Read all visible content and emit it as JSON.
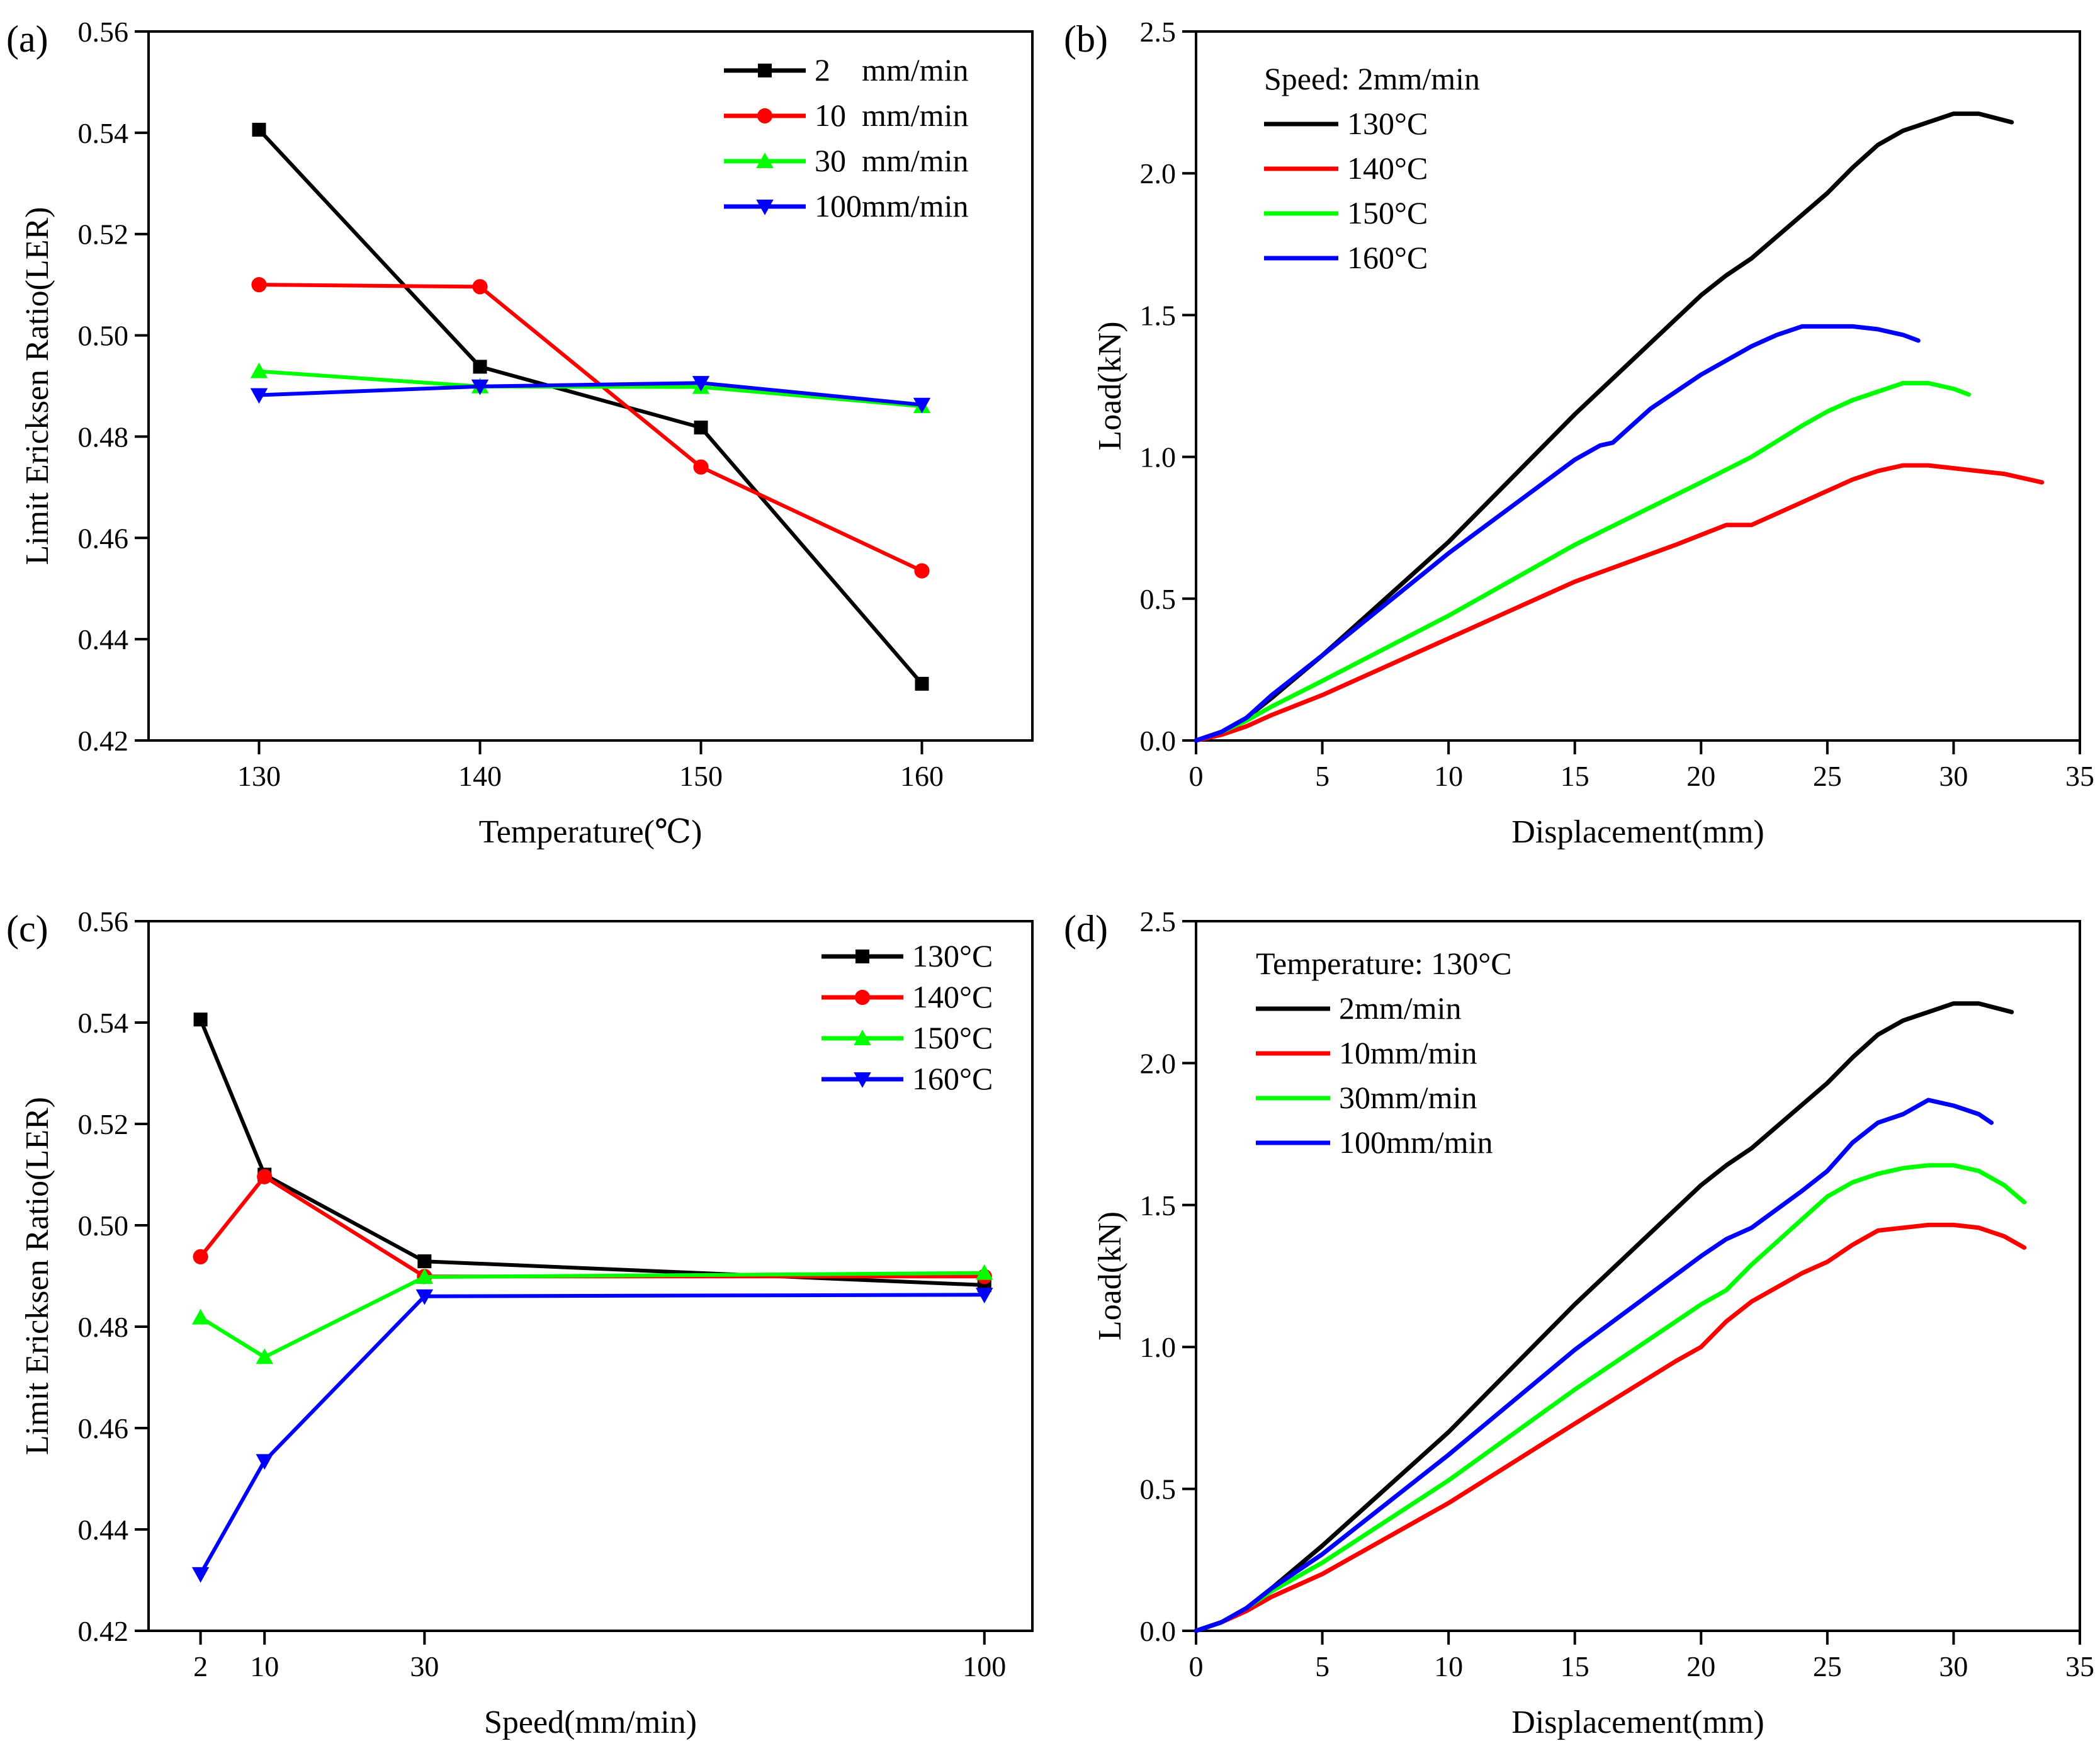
{
  "chart_data": [
    {
      "panel": "(a)",
      "type": "line",
      "xlabel": "Temperature(℃)",
      "ylabel": "Limit Ericksen Ratio(LER)",
      "xlim": [
        125,
        165
      ],
      "ylim": [
        0.42,
        0.56
      ],
      "xticks": [
        130,
        140,
        150,
        160
      ],
      "xtick_labels": [
        "130",
        "140",
        "150",
        "160"
      ],
      "yticks": [
        0.42,
        0.44,
        0.46,
        0.48,
        0.5,
        0.52,
        0.54,
        0.56
      ],
      "ytick_labels": [
        "0.42",
        "0.44",
        "0.46",
        "0.48",
        "0.50",
        "0.52",
        "0.54",
        "0.56"
      ],
      "legend_position": "top-right",
      "legend_title": "",
      "series": [
        {
          "name": "2    mm/min",
          "color": "#000000",
          "marker": "square",
          "x": [
            130,
            140,
            150,
            160
          ],
          "y": [
            0.5406,
            0.4938,
            0.4818,
            0.4312
          ]
        },
        {
          "name": "10  mm/min",
          "color": "#ff0000",
          "marker": "circle",
          "x": [
            130,
            140,
            150,
            160
          ],
          "y": [
            0.51,
            0.5096,
            0.474,
            0.4535
          ]
        },
        {
          "name": "30  mm/min",
          "color": "#00ff00",
          "marker": "triangle-up",
          "x": [
            130,
            140,
            150,
            160
          ],
          "y": [
            0.4929,
            0.4899,
            0.4898,
            0.486
          ]
        },
        {
          "name": "100mm/min",
          "color": "#0000ff",
          "marker": "triangle-down",
          "x": [
            130,
            140,
            150,
            160
          ],
          "y": [
            0.4882,
            0.4899,
            0.4906,
            0.4863
          ]
        }
      ]
    },
    {
      "panel": "(b)",
      "type": "line",
      "xlabel": "Displacement(mm)",
      "ylabel": "Load(kN)",
      "xlim": [
        0,
        35
      ],
      "ylim": [
        0,
        2.5
      ],
      "xticks": [
        0,
        5,
        10,
        15,
        20,
        25,
        30,
        35
      ],
      "xtick_labels": [
        "0",
        "5",
        "10",
        "15",
        "20",
        "25",
        "30",
        "35"
      ],
      "yticks": [
        0,
        0.5,
        1.0,
        1.5,
        2.0,
        2.5
      ],
      "ytick_labels": [
        "0.0",
        "0.5",
        "1.0",
        "1.5",
        "2.0",
        "2.5"
      ],
      "legend_position": "top-left",
      "legend_title": "Speed: 2mm/min",
      "series": [
        {
          "name": "130°C",
          "color": "#000000",
          "marker": "none",
          "x": [
            0,
            1,
            2,
            3,
            5,
            10,
            15,
            20,
            21,
            22,
            25,
            26,
            27,
            28,
            29,
            30,
            31,
            32.3
          ],
          "y": [
            0,
            0.03,
            0.08,
            0.15,
            0.3,
            0.7,
            1.15,
            1.57,
            1.64,
            1.7,
            1.93,
            2.02,
            2.1,
            2.15,
            2.18,
            2.21,
            2.21,
            2.18
          ]
        },
        {
          "name": "140°C",
          "color": "#ff0000",
          "marker": "none",
          "x": [
            0,
            1,
            2,
            3,
            5,
            10,
            15,
            19,
            21,
            22,
            24,
            25,
            26,
            27,
            28,
            29,
            30,
            31,
            32,
            33.5
          ],
          "y": [
            0,
            0.02,
            0.05,
            0.09,
            0.16,
            0.36,
            0.56,
            0.69,
            0.76,
            0.76,
            0.84,
            0.88,
            0.92,
            0.95,
            0.97,
            0.97,
            0.96,
            0.95,
            0.94,
            0.91
          ]
        },
        {
          "name": "150°C",
          "color": "#00ff00",
          "marker": "none",
          "x": [
            0,
            1,
            2,
            3,
            5,
            10,
            15,
            20,
            22,
            24,
            25,
            26,
            27,
            28,
            29,
            30,
            30.6
          ],
          "y": [
            0,
            0.03,
            0.07,
            0.12,
            0.21,
            0.44,
            0.69,
            0.91,
            1.0,
            1.11,
            1.16,
            1.2,
            1.23,
            1.26,
            1.26,
            1.24,
            1.22
          ]
        },
        {
          "name": "160°C",
          "color": "#0000ff",
          "marker": "none",
          "x": [
            0,
            1,
            2,
            3,
            5,
            10,
            15,
            16,
            16.5,
            18,
            20,
            22,
            23,
            24,
            25,
            26,
            27,
            28,
            28.6
          ],
          "y": [
            0,
            0.03,
            0.08,
            0.16,
            0.3,
            0.66,
            0.99,
            1.04,
            1.05,
            1.17,
            1.29,
            1.39,
            1.43,
            1.46,
            1.46,
            1.46,
            1.45,
            1.43,
            1.41
          ]
        }
      ]
    },
    {
      "panel": "(c)",
      "type": "line",
      "xlabel": "Speed(mm/min)",
      "ylabel": "Limit Ericksen Ratio(LER)",
      "xlim": [
        -4.5,
        106
      ],
      "ylim": [
        0.42,
        0.56
      ],
      "xticks": [
        2,
        10,
        30,
        100
      ],
      "xtick_labels": [
        "2",
        "10",
        "30",
        "100"
      ],
      "yticks": [
        0.42,
        0.44,
        0.46,
        0.48,
        0.5,
        0.52,
        0.54,
        0.56
      ],
      "ytick_labels": [
        "0.42",
        "0.44",
        "0.46",
        "0.48",
        "0.50",
        "0.52",
        "0.54",
        "0.56"
      ],
      "legend_position": "top-right",
      "legend_title": "",
      "series": [
        {
          "name": "130°C",
          "color": "#000000",
          "marker": "square",
          "x": [
            2,
            10,
            30,
            100
          ],
          "y": [
            0.5406,
            0.51,
            0.4929,
            0.4882
          ]
        },
        {
          "name": "140°C",
          "color": "#ff0000",
          "marker": "circle",
          "x": [
            2,
            10,
            30,
            100
          ],
          "y": [
            0.4938,
            0.5096,
            0.4899,
            0.4899
          ]
        },
        {
          "name": "150°C",
          "color": "#00ff00",
          "marker": "triangle-up",
          "x": [
            2,
            10,
            30,
            100
          ],
          "y": [
            0.4818,
            0.474,
            0.4898,
            0.4906
          ]
        },
        {
          "name": "160°C",
          "color": "#0000ff",
          "marker": "triangle-down",
          "x": [
            2,
            10,
            30,
            100
          ],
          "y": [
            0.4312,
            0.4535,
            0.486,
            0.4863
          ]
        }
      ]
    },
    {
      "panel": "(d)",
      "type": "line",
      "xlabel": "Displacement(mm)",
      "ylabel": "Load(kN)",
      "xlim": [
        0,
        35
      ],
      "ylim": [
        0,
        2.5
      ],
      "xticks": [
        0,
        5,
        10,
        15,
        20,
        25,
        30,
        35
      ],
      "xtick_labels": [
        "0",
        "5",
        "10",
        "15",
        "20",
        "25",
        "30",
        "35"
      ],
      "yticks": [
        0,
        0.5,
        1.0,
        1.5,
        2.0,
        2.5
      ],
      "ytick_labels": [
        "0.0",
        "0.5",
        "1.0",
        "1.5",
        "2.0",
        "2.5"
      ],
      "legend_position": "top-left",
      "legend_title": "Temperature: 130°C",
      "series": [
        {
          "name": "2mm/min",
          "color": "#000000",
          "marker": "none",
          "x": [
            0,
            1,
            2,
            3,
            5,
            10,
            15,
            20,
            21,
            22,
            25,
            26,
            27,
            28,
            29,
            30,
            31,
            32.3
          ],
          "y": [
            0,
            0.03,
            0.08,
            0.15,
            0.3,
            0.7,
            1.15,
            1.57,
            1.64,
            1.7,
            1.93,
            2.02,
            2.1,
            2.15,
            2.18,
            2.21,
            2.21,
            2.18
          ]
        },
        {
          "name": "10mm/min",
          "color": "#ff0000",
          "marker": "none",
          "x": [
            0,
            1,
            2,
            3,
            5,
            10,
            15,
            19,
            20,
            21,
            22,
            24,
            25,
            26,
            27,
            28,
            29,
            30,
            31,
            32,
            32.8
          ],
          "y": [
            0,
            0.03,
            0.07,
            0.12,
            0.2,
            0.45,
            0.73,
            0.95,
            1.0,
            1.09,
            1.16,
            1.26,
            1.3,
            1.36,
            1.41,
            1.42,
            1.43,
            1.43,
            1.42,
            1.39,
            1.35
          ]
        },
        {
          "name": "30mm/min",
          "color": "#00ff00",
          "marker": "none",
          "x": [
            0,
            1,
            2,
            3,
            5,
            10,
            15,
            20,
            21,
            22,
            24,
            25,
            26,
            27,
            28,
            29,
            30,
            31,
            32,
            32.8
          ],
          "y": [
            0,
            0.03,
            0.08,
            0.14,
            0.24,
            0.53,
            0.85,
            1.15,
            1.2,
            1.29,
            1.45,
            1.53,
            1.58,
            1.61,
            1.63,
            1.64,
            1.64,
            1.62,
            1.57,
            1.51
          ]
        },
        {
          "name": "100mm/min",
          "color": "#0000ff",
          "marker": "none",
          "x": [
            0,
            1,
            2,
            3,
            5,
            10,
            15,
            20,
            21,
            22,
            24,
            25,
            26,
            27,
            28,
            29,
            30,
            31,
            31.5
          ],
          "y": [
            0,
            0.03,
            0.08,
            0.15,
            0.27,
            0.62,
            0.99,
            1.32,
            1.38,
            1.42,
            1.55,
            1.62,
            1.72,
            1.79,
            1.82,
            1.87,
            1.85,
            1.82,
            1.79
          ]
        }
      ]
    }
  ]
}
